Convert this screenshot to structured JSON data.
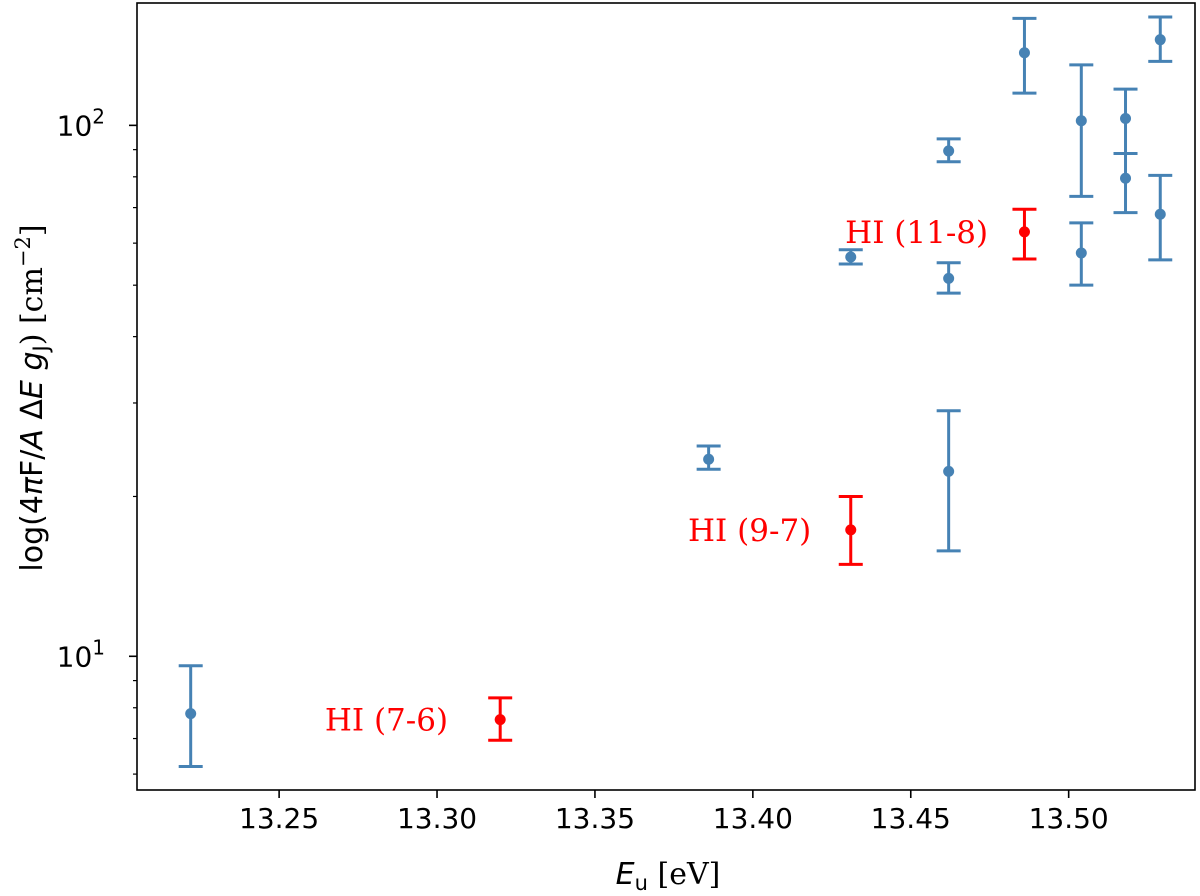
{
  "chart_data": {
    "type": "scatter",
    "title": "",
    "xlabel": {
      "var": "E",
      "sub": "u",
      "unit": " [eV]"
    },
    "ylabel": {
      "pre": "log(4",
      "pi": "π",
      "mid1": "F/",
      "A": "A",
      "mid2": " Δ",
      "E": "E",
      "g": "g",
      "gsub": "J",
      "post": ") [cm",
      "exp": "−2",
      "close": "]"
    },
    "xlim": [
      13.205,
      13.54
    ],
    "ylim": [
      5.6,
      170
    ],
    "yscale": "log",
    "grid": false,
    "x_ticks": [
      "13.25",
      "13.30",
      "13.35",
      "13.40",
      "13.45",
      "13.50"
    ],
    "y_ticks": [
      {
        "value": 10,
        "base": "10",
        "exp": "1"
      },
      {
        "value": 100,
        "base": "10",
        "exp": "2"
      }
    ],
    "colors": {
      "series": "#4682b4",
      "highlight": "#ff0000"
    },
    "series": [
      {
        "color": "#4682b4",
        "points": [
          {
            "x": 13.222,
            "y": 7.8,
            "ylow": 6.2,
            "yhigh": 9.6
          },
          {
            "x": 13.386,
            "y": 23.5,
            "ylow": 22.5,
            "yhigh": 24.9
          },
          {
            "x": 13.431,
            "y": 56.5,
            "ylow": 54.8,
            "yhigh": 58.3
          },
          {
            "x": 13.462,
            "y": 89.5,
            "ylow": 85.4,
            "yhigh": 94.3
          },
          {
            "x": 13.462,
            "y": 51.5,
            "ylow": 48.3,
            "yhigh": 55.1
          },
          {
            "x": 13.462,
            "y": 22.3,
            "ylow": 15.8,
            "yhigh": 29.0
          },
          {
            "x": 13.486,
            "y": 137,
            "ylow": 115,
            "yhigh": 159
          },
          {
            "x": 13.504,
            "y": 102,
            "ylow": 73.5,
            "yhigh": 130
          },
          {
            "x": 13.504,
            "y": 57.5,
            "ylow": 50.0,
            "yhigh": 65.5
          },
          {
            "x": 13.518,
            "y": 103,
            "ylow": 88.5,
            "yhigh": 117
          },
          {
            "x": 13.518,
            "y": 79.5,
            "ylow": 68.5,
            "yhigh": 88.5
          },
          {
            "x": 13.529,
            "y": 145,
            "ylow": 132,
            "yhigh": 160
          },
          {
            "x": 13.529,
            "y": 68.0,
            "ylow": 55.8,
            "yhigh": 80.5
          }
        ]
      },
      {
        "color": "#ff0000",
        "points": [
          {
            "x": 13.32,
            "y": 7.6,
            "ylow": 6.95,
            "yhigh": 8.35
          },
          {
            "x": 13.431,
            "y": 17.3,
            "ylow": 14.9,
            "yhigh": 20.0
          },
          {
            "x": 13.486,
            "y": 63.0,
            "ylow": 56.0,
            "yhigh": 69.5
          }
        ]
      }
    ],
    "annotations": [
      {
        "text": "HI (7-6)",
        "x": 13.3035,
        "y": 7.6
      },
      {
        "text": "HI (9-7)",
        "x": 13.4185,
        "y": 17.3
      },
      {
        "text": "HI (11-8)",
        "x": 13.4745,
        "y": 63.0
      }
    ]
  }
}
